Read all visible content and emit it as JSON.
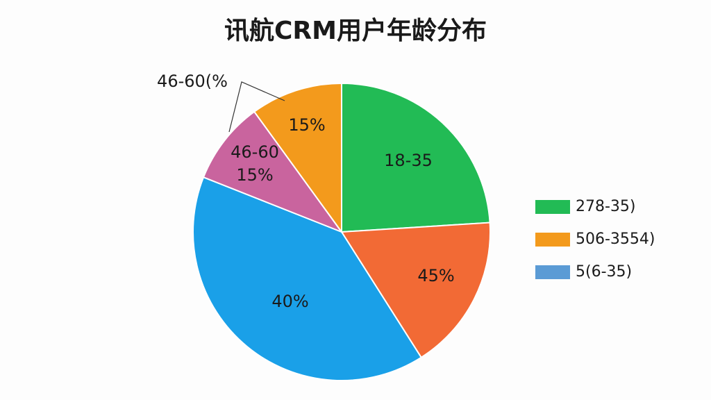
{
  "chart_data": {
    "type": "pie",
    "title": "讯航CRM用户年龄分布",
    "categories": [
      null,
      null,
      null,
      null,
      null
    ],
    "values": [
      24,
      17,
      40,
      9,
      10
    ],
    "colors": [
      "#22bb55",
      "#f26a35",
      "#1aa0e8",
      "#c9649e",
      "#f39a1c"
    ],
    "annotations": [
      "18-35",
      "45%",
      "40%",
      "46-60",
      "15%",
      "15%",
      "46-60(%"
    ],
    "legend": [
      {
        "label": "278-35)",
        "color": "#22bb55"
      },
      {
        "label": "506-3554)",
        "color": "#f39a1c"
      },
      {
        "label": "5(6-35)",
        "color": "#5b9bd5"
      }
    ]
  }
}
